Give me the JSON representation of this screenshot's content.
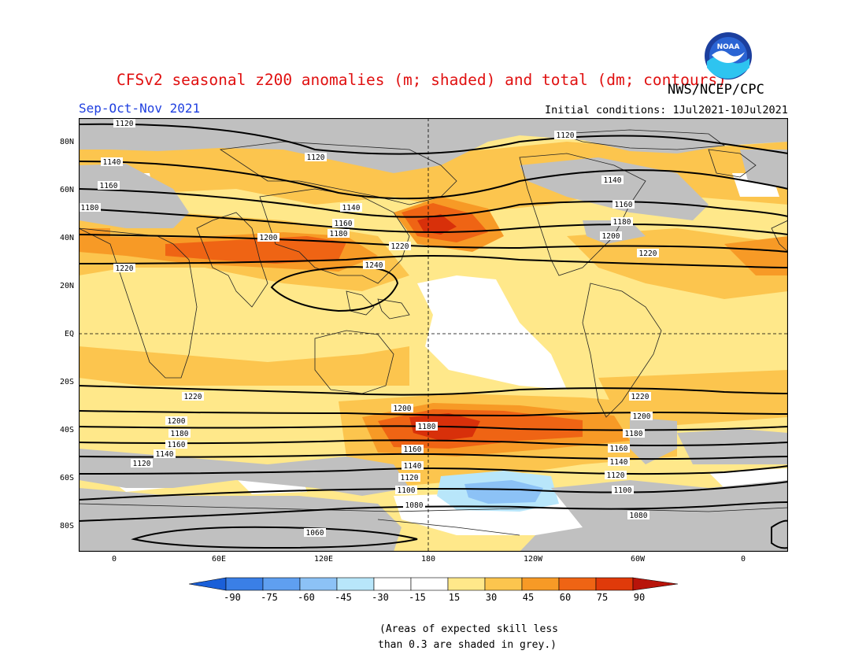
{
  "header": {
    "title": "CFSv2 seasonal z200 anomalies (m; shaded) and total (dm; contours)",
    "agency": "NWS/NCEP/CPC",
    "logo_text": "NOAA",
    "season": "Sep-Oct-Nov 2021",
    "initial_conditions": "Initial conditions: 1Jul2021-10Jul2021"
  },
  "axes": {
    "lat_labels": [
      "80N",
      "60N",
      "40N",
      "20N",
      "EQ",
      "20S",
      "40S",
      "60S",
      "80S"
    ],
    "lon_labels": [
      "0",
      "60E",
      "120E",
      "180",
      "120W",
      "60W",
      "0"
    ],
    "projection": "cylindrical equidistant, 0 to 0 (centered 180)"
  },
  "colorbar": {
    "labels": [
      "-90",
      "-75",
      "-60",
      "-45",
      "-30",
      "-15",
      "15",
      "30",
      "45",
      "60",
      "75",
      "90"
    ],
    "colors": [
      "#1a5fd8",
      "#3a7fe6",
      "#5f9ff0",
      "#8cc2f6",
      "#b8e6fa",
      "#ffffff",
      "#ffe88a",
      "#fcc54e",
      "#f79a26",
      "#ef6414",
      "#e03a0a",
      "#b8140a"
    ],
    "skill_grey": "#c0c0c0"
  },
  "contours": {
    "units": "dm",
    "labels": [
      "1120",
      "1120",
      "1120",
      "1140",
      "1140",
      "1140",
      "1160",
      "1160",
      "1160",
      "1180",
      "1180",
      "1180",
      "1200",
      "1200",
      "1220",
      "1220",
      "1220",
      "1240",
      "1220",
      "1220",
      "1200",
      "1200",
      "1200",
      "1180",
      "1180",
      "1180",
      "1160",
      "1160",
      "1160",
      "1140",
      "1140",
      "1140",
      "1120",
      "1120",
      "1120",
      "1100",
      "1100",
      "1080",
      "1080",
      "1060"
    ]
  },
  "footnote": {
    "line1": "(Areas of expected skill less",
    "line2": "than 0.3 are shaded in grey.)"
  }
}
